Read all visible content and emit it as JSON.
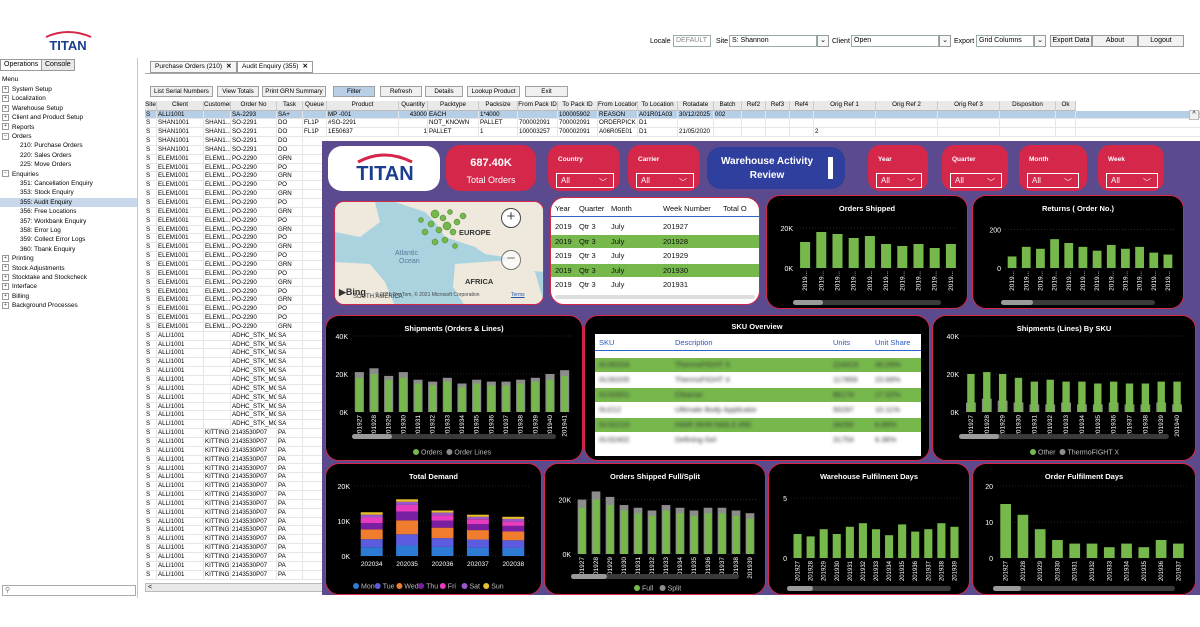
{
  "app": {
    "logo_text": "TITAN"
  },
  "topbar": {
    "locale_label": "Locale",
    "locale_value": "DEFAULT",
    "site_label": "Site",
    "site_value": "S: Shannon",
    "client_label": "Client",
    "client_value": "Open",
    "export_label": "Export",
    "export_value": "Grid Columns",
    "export_data_btn": "Export Data",
    "about_btn": "About",
    "logout_btn": "Logout"
  },
  "leftpanel": {
    "tabs": [
      "Operations",
      "Console"
    ],
    "menu_label": "Menu",
    "items": [
      {
        "label": "System Setup",
        "level": 0,
        "exp": "+"
      },
      {
        "label": "Localization",
        "level": 0,
        "exp": "+"
      },
      {
        "label": "Warehouse Setup",
        "level": 0,
        "exp": "+"
      },
      {
        "label": "Client and Product Setup",
        "level": 0,
        "exp": "+"
      },
      {
        "label": "Reports",
        "level": 0,
        "exp": "+"
      },
      {
        "label": "Orders",
        "level": 0,
        "exp": "-"
      },
      {
        "label": "210: Purchase Orders",
        "level": 1
      },
      {
        "label": "220: Sales Orders",
        "level": 1
      },
      {
        "label": "225: Move Orders",
        "level": 1
      },
      {
        "label": "Enquiries",
        "level": 0,
        "exp": "-"
      },
      {
        "label": "351: Cancellation Enquiry",
        "level": 1
      },
      {
        "label": "353: Stock Enquiry",
        "level": 1
      },
      {
        "label": "355: Audit Enquiry",
        "level": 1,
        "selected": true
      },
      {
        "label": "356: Free Locations",
        "level": 1
      },
      {
        "label": "357: Workbank Enquiry",
        "level": 1
      },
      {
        "label": "358: Error Log",
        "level": 1
      },
      {
        "label": "359: Collect Error Logs",
        "level": 1
      },
      {
        "label": "360: Tbank Enquiry",
        "level": 1
      },
      {
        "label": "Printing",
        "level": 0,
        "exp": "+"
      },
      {
        "label": "Stock Adjustments",
        "level": 0,
        "exp": "+"
      },
      {
        "label": "Stocktake and Stockcheck",
        "level": 0,
        "exp": "+"
      },
      {
        "label": "Interface",
        "level": 0,
        "exp": "+"
      },
      {
        "label": "Billing",
        "level": 0,
        "exp": "+"
      },
      {
        "label": "Background Processes",
        "level": 0,
        "exp": "+"
      }
    ]
  },
  "doc_tabs": [
    "Purchase Orders (210)",
    "Audit Enquiry (355)"
  ],
  "actions": [
    "List Serial Numbers",
    "View Totals",
    "Print GRN Summary",
    "Filter",
    "Refresh",
    "Details",
    "Lookup Product",
    "Exit"
  ],
  "grid": {
    "columns": [
      "Site",
      "Client",
      "Customer",
      "Order No",
      "Task",
      "Queue",
      "Product",
      "Quantity",
      "Packtype",
      "Packsize",
      "From Pack ID",
      "To Pack ID",
      "From Location",
      "To Location",
      "Rotadate",
      "Batch",
      "Ref2",
      "Ref3",
      "Ref4",
      "Orig Ref 1",
      "Orig Ref 2",
      "Orig Ref 3",
      "Disposition",
      "Ok"
    ],
    "rows": [
      [
        "S",
        "ALLI1001",
        "",
        "SA-2293",
        "SA+",
        "",
        "MP -001",
        "43000",
        "EACH",
        "1*4000",
        "",
        "100005902",
        "REASON",
        "A01R01A03",
        "30/12/2025",
        "002",
        "",
        "",
        "",
        "",
        "",
        "",
        "",
        ""
      ],
      [
        "S",
        "SHAN1001",
        "SHAN1...",
        "SO-2291",
        "DO",
        "FL1P",
        "#SO-2291",
        "",
        "NOT_KNOWN",
        "PALLET",
        "700002091",
        "700002091",
        "ORDERPICK",
        "D1",
        "",
        "",
        "",
        "",
        "",
        "",
        "",
        "",
        "",
        ""
      ],
      [
        "S",
        "SHAN1001",
        "SHAN1...",
        "SO-2291",
        "DO",
        "FL1P",
        "1E50637",
        "1",
        "PALLET",
        "1",
        "100003257",
        "700002091",
        "A06R05E01",
        "D1",
        "21/05/2020",
        "",
        "",
        "",
        "",
        "2",
        "",
        "",
        "",
        ""
      ],
      [
        "S",
        "SHAN1001",
        "SHAN1...",
        "SO-2291",
        "DO"
      ],
      [
        "S",
        "SHAN1001",
        "SHAN1...",
        "SO-2291",
        "DO"
      ],
      [
        "S",
        "ELEM1001",
        "ELEM1...",
        "PO-2290",
        "GRN"
      ],
      [
        "S",
        "ELEM1001",
        "ELEM1...",
        "PO-2290",
        "PO"
      ],
      [
        "S",
        "ELEM1001",
        "ELEM1...",
        "PO-2290",
        "GRN"
      ],
      [
        "S",
        "ELEM1001",
        "ELEM1...",
        "PO-2290",
        "PO"
      ],
      [
        "S",
        "ELEM1001",
        "ELEM1...",
        "PO-2290",
        "GRN"
      ],
      [
        "S",
        "ELEM1001",
        "ELEM1...",
        "PO-2290",
        "PO"
      ],
      [
        "S",
        "ELEM1001",
        "ELEM1...",
        "PO-2290",
        "GRN"
      ],
      [
        "S",
        "ELEM1001",
        "ELEM1...",
        "PO-2290",
        "PO"
      ],
      [
        "S",
        "ELEM1001",
        "ELEM1...",
        "PO-2290",
        "GRN"
      ],
      [
        "S",
        "ELEM1001",
        "ELEM1...",
        "PO-2290",
        "PO"
      ],
      [
        "S",
        "ELEM1001",
        "ELEM1...",
        "PO-2290",
        "GRN"
      ],
      [
        "S",
        "ELEM1001",
        "ELEM1...",
        "PO-2290",
        "PO"
      ],
      [
        "S",
        "ELEM1001",
        "ELEM1...",
        "PO-2290",
        "GRN"
      ],
      [
        "S",
        "ELEM1001",
        "ELEM1...",
        "PO-2290",
        "PO"
      ],
      [
        "S",
        "ELEM1001",
        "ELEM1...",
        "PO-2290",
        "GRN"
      ],
      [
        "S",
        "ELEM1001",
        "ELEM1...",
        "PO-2290",
        "PO"
      ],
      [
        "S",
        "ELEM1001",
        "ELEM1...",
        "PO-2290",
        "GRN"
      ],
      [
        "S",
        "ELEM1001",
        "ELEM1...",
        "PO-2290",
        "PO"
      ],
      [
        "S",
        "ELEM1001",
        "ELEM1...",
        "PO-2290",
        "PO"
      ],
      [
        "S",
        "ELEM1001",
        "ELEM1...",
        "PO-2290",
        "GRN"
      ],
      [
        "S",
        "ALLI1001",
        "",
        "ADHC_STK_MOV",
        "SA"
      ],
      [
        "S",
        "ALLI1001",
        "",
        "ADHC_STK_MOV",
        "SA"
      ],
      [
        "S",
        "ALLI1001",
        "",
        "ADHC_STK_MOV",
        "SA"
      ],
      [
        "S",
        "ALLI1001",
        "",
        "ADHC_STK_MOV",
        "SA"
      ],
      [
        "S",
        "ALLI1001",
        "",
        "ADHC_STK_MOV",
        "SA"
      ],
      [
        "S",
        "ALLI1001",
        "",
        "ADHC_STK_MOV",
        "SA"
      ],
      [
        "S",
        "ALLI1001",
        "",
        "ADHC_STK_MOV",
        "SA"
      ],
      [
        "S",
        "ALLI1001",
        "",
        "ADHC_STK_MOV",
        "SA"
      ],
      [
        "S",
        "ALLI1001",
        "",
        "ADHC_STK_MOV",
        "SA"
      ],
      [
        "S",
        "ALLI1001",
        "",
        "ADHC_STK_MOV",
        "SA"
      ],
      [
        "S",
        "ALLI1001",
        "",
        "ADHC_STK_MOV",
        "SA"
      ],
      [
        "S",
        "ALLI1001",
        "KITTING",
        "2143530P07",
        "PA"
      ],
      [
        "S",
        "ALLI1001",
        "KITTING",
        "2143530P07",
        "PA"
      ],
      [
        "S",
        "ALLI1001",
        "KITTING",
        "2143530P07",
        "PA"
      ],
      [
        "S",
        "ALLI1001",
        "KITTING",
        "2143530P07",
        "PA"
      ],
      [
        "S",
        "ALLI1001",
        "KITTING",
        "2143530P07",
        "PA"
      ],
      [
        "S",
        "ALLI1001",
        "KITTING",
        "2143530P07",
        "PA"
      ],
      [
        "S",
        "ALLI1001",
        "KITTING",
        "2143530P07",
        "PA"
      ],
      [
        "S",
        "ALLI1001",
        "KITTING",
        "2143530P07",
        "PA"
      ],
      [
        "S",
        "ALLI1001",
        "KITTING",
        "2143530P07",
        "PA"
      ],
      [
        "S",
        "ALLI1001",
        "KITTING",
        "2143530P07",
        "PA"
      ],
      [
        "S",
        "ALLI1001",
        "KITTING",
        "2143530P07",
        "PA"
      ],
      [
        "S",
        "ALLI1001",
        "KITTING",
        "2143530P07",
        "PA"
      ],
      [
        "S",
        "ALLI1001",
        "KITTING",
        "2143530P07",
        "PA"
      ],
      [
        "S",
        "ALLI1001",
        "KITTING",
        "2143530P07",
        "PA"
      ],
      [
        "S",
        "ALLI1001",
        "KITTING",
        "2143530P07",
        "PA"
      ],
      [
        "S",
        "ALLI1001",
        "KITTING",
        "2143530P07",
        "PA"
      ],
      [
        "S",
        "ALLI1001",
        "KITTING",
        "2143530P07",
        "PA"
      ]
    ]
  },
  "dashboard": {
    "kpi_value": "687.40K",
    "kpi_label": "Total Orders",
    "title_line1": "Warehouse Activity",
    "title_line2": "Review",
    "slicers": [
      {
        "label": "Country",
        "value": "All"
      },
      {
        "label": "Carrier",
        "value": "All"
      },
      {
        "label": "Year",
        "value": "All"
      },
      {
        "label": "Quarter",
        "value": "All"
      },
      {
        "label": "Month",
        "value": "All"
      },
      {
        "label": "Week",
        "value": "All"
      }
    ],
    "map": {
      "labels": [
        "EUROPE",
        "Atlantic",
        "Ocean",
        "AFRICA",
        "SOUTH AMERICA"
      ],
      "bing": "Bing",
      "copyright": "© 2021 TomTom, © 2021 Microsoft Corporation",
      "terms": "Terms"
    },
    "week_table": {
      "headers": [
        "Year",
        "Quarter",
        "Month",
        "Week Number",
        "Total O"
      ],
      "rows": [
        [
          "2019",
          "Qtr 3",
          "July",
          "201927"
        ],
        [
          "2019",
          "Qtr 3",
          "July",
          "201928"
        ],
        [
          "2019",
          "Qtr 3",
          "July",
          "201929"
        ],
        [
          "2019",
          "Qtr 3",
          "July",
          "201930"
        ],
        [
          "2019",
          "Qtr 3",
          "July",
          "201931"
        ]
      ]
    },
    "sku_overview": {
      "title": "SKU Overview",
      "headers": [
        "SKU",
        "Description",
        "Units",
        "Unit Share"
      ],
      "rows": [
        [
          "0U30204",
          "ThermoFIGHT X",
          "224419",
          "45.09%"
        ],
        [
          "0U30205",
          "ThermoFIGHT X",
          "117859",
          "23.68%"
        ],
        [
          "0U32601",
          "Cleanse",
          "86174",
          "17.32%"
        ],
        [
          "0U212",
          "Ultimate Body Applicator",
          "50297",
          "10.11%"
        ],
        [
          "0U32210",
          "HAIR SKIN NAILS 450",
          "34292",
          "6.89%"
        ],
        [
          "0U32402",
          "Defining Gel",
          "31754",
          "6.38%"
        ]
      ]
    }
  },
  "chart_data": [
    {
      "type": "bar",
      "title": "Orders Shipped",
      "y_ticks": [
        "20K",
        "0K"
      ],
      "ylim": [
        0,
        25000
      ],
      "categories": [
        "2019...",
        "2019...",
        "2019...",
        "2019...",
        "2019...",
        "2019...",
        "2019...",
        "2019...",
        "2019...",
        "2019..."
      ],
      "values": [
        13000,
        18000,
        17000,
        15000,
        16000,
        12000,
        11000,
        12000,
        10000,
        12000
      ]
    },
    {
      "type": "bar",
      "title": "Returns ( Order No.)",
      "y_ticks": [
        "200",
        "0"
      ],
      "ylim": [
        0,
        260
      ],
      "categories": [
        "2019...",
        "2019...",
        "2019...",
        "2019...",
        "2019...",
        "2019...",
        "2019...",
        "2019...",
        "2019...",
        "2019...",
        "2019...",
        "2019..."
      ],
      "values": [
        60,
        110,
        100,
        150,
        130,
        110,
        90,
        120,
        100,
        110,
        80,
        70
      ]
    },
    {
      "type": "bar",
      "title": "Shipments (Orders & Lines)",
      "y_ticks": [
        "40K",
        "20K",
        "0K"
      ],
      "ylim": [
        0,
        40000
      ],
      "categories": [
        "201927",
        "201928",
        "201929",
        "201930",
        "201931",
        "201932",
        "201933",
        "201934",
        "201935",
        "201936",
        "201937",
        "201938",
        "201939",
        "201940",
        "201941"
      ],
      "series": [
        {
          "name": "Orders",
          "values": [
            18000,
            20000,
            17000,
            18000,
            15000,
            14000,
            16000,
            13000,
            15000,
            14000,
            14000,
            15000,
            16000,
            17000,
            19000
          ]
        },
        {
          "name": "Order Lines",
          "values": [
            21000,
            23000,
            19000,
            21000,
            17000,
            16000,
            18000,
            15000,
            17000,
            16000,
            16000,
            17000,
            18000,
            20000,
            22000
          ]
        }
      ]
    },
    {
      "type": "bar",
      "title": "Shipments (Lines) By SKU",
      "y_ticks": [
        "40K",
        "20K",
        "0K"
      ],
      "ylim": [
        0,
        40000
      ],
      "categories": [
        "201927",
        "201928",
        "201929",
        "201930",
        "201931",
        "201932",
        "201933",
        "201934",
        "201935",
        "201936",
        "201937",
        "201938",
        "201939",
        "201940"
      ],
      "series": [
        {
          "name": "Other",
          "values": [
            20000,
            21000,
            20000,
            18000,
            16000,
            17000,
            16000,
            16000,
            15000,
            16000,
            15000,
            15000,
            16000,
            16000
          ]
        },
        {
          "name": "ThermoFIGHT X",
          "values": [
            5000,
            7000,
            6000,
            5000,
            4000,
            4000,
            5000,
            4000,
            4000,
            5000,
            4000,
            4000,
            5000,
            4000
          ]
        }
      ]
    },
    {
      "type": "bar",
      "title": "Total Demand",
      "y_ticks": [
        "20K",
        "10K",
        "0K"
      ],
      "ylim": [
        0,
        20000
      ],
      "categories": [
        "202034",
        "202035",
        "202036",
        "202037",
        "202038"
      ],
      "series": [
        {
          "name": "Mon",
          "values": [
            2500,
            3000,
            2600,
            2400,
            2300
          ]
        },
        {
          "name": "Tue",
          "values": [
            2300,
            3200,
            2500,
            2300,
            2200
          ]
        },
        {
          "name": "Wed",
          "values": [
            2800,
            4000,
            3000,
            2700,
            2500
          ]
        },
        {
          "name": "Thu",
          "values": [
            1800,
            2500,
            2000,
            1700,
            1600
          ]
        },
        {
          "name": "Fri",
          "values": [
            1600,
            1900,
            1500,
            1400,
            1300
          ]
        },
        {
          "name": "Sat",
          "values": [
            800,
            900,
            800,
            700,
            700
          ]
        },
        {
          "name": "Sun",
          "values": [
            700,
            700,
            600,
            600,
            600
          ]
        }
      ]
    },
    {
      "type": "bar",
      "title": "Orders Shipped Full/Split",
      "y_ticks": [
        "20K",
        "0K"
      ],
      "ylim": [
        0,
        25000
      ],
      "categories": [
        "201927",
        "201928",
        "201929",
        "201930",
        "201931",
        "201932",
        "201933",
        "201934",
        "201935",
        "201936",
        "201937",
        "201938",
        "201939"
      ],
      "series": [
        {
          "name": "Full",
          "values": [
            17000,
            20000,
            18000,
            16000,
            15000,
            14000,
            16000,
            15000,
            14000,
            15000,
            15000,
            14000,
            13000
          ]
        },
        {
          "name": "Split",
          "values": [
            20000,
            23000,
            21000,
            18000,
            17000,
            16000,
            18000,
            17000,
            16000,
            17000,
            17000,
            16000,
            15000
          ]
        }
      ]
    },
    {
      "type": "bar",
      "title": "Warehouse Fulfilment Days",
      "y_ticks": [
        "5",
        "0"
      ],
      "ylim": [
        0,
        6
      ],
      "categories": [
        "201927",
        "201928",
        "201929",
        "201930",
        "201931",
        "201932",
        "201933",
        "201934",
        "201935",
        "201936",
        "201937",
        "201938",
        "201939"
      ],
      "values": [
        2.0,
        1.8,
        2.4,
        2.0,
        2.6,
        2.9,
        2.4,
        1.9,
        2.8,
        2.2,
        2.4,
        2.9,
        2.6
      ]
    },
    {
      "type": "bar",
      "title": "Order Fulfilment Days",
      "y_ticks": [
        "20",
        "10",
        "0"
      ],
      "ylim": [
        0,
        20
      ],
      "categories": [
        "201927",
        "201928",
        "201929",
        "201930",
        "201931",
        "201932",
        "201933",
        "201934",
        "201935",
        "201936",
        "201937"
      ],
      "values": [
        15,
        12,
        8,
        5,
        4,
        4,
        3,
        4,
        3,
        5,
        4
      ]
    }
  ],
  "colors": {
    "accent_red": "#d4274a",
    "dash_bg": "#5b4a8e",
    "bar_green": "#76b84c",
    "bar_gray": "#8c8c8c",
    "demand": [
      "#2e7bd6",
      "#5c5ce0",
      "#f07d2d",
      "#7a1fa2",
      "#e83cbf",
      "#9b57c9",
      "#e8c12a"
    ]
  }
}
